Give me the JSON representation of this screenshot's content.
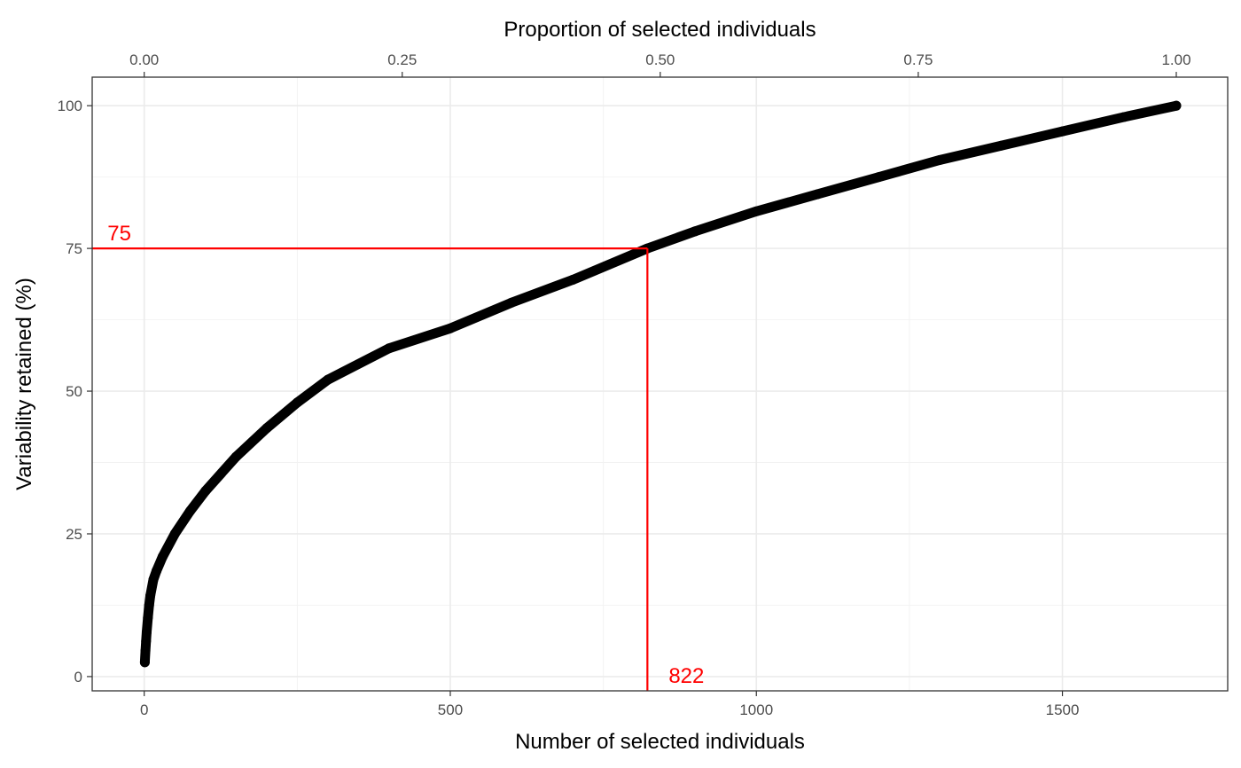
{
  "chart_data": {
    "type": "line",
    "xlabel": "Number of selected individuals",
    "ylabel": "Variability retained (%)",
    "secondary_xlabel": "Proportion of selected individuals",
    "xlim": [
      -85,
      1770
    ],
    "ylim": [
      -2.5,
      105
    ],
    "secondary_xlim": [
      0,
      1
    ],
    "secondary_x_max_individuals": 1686,
    "x_ticks": [
      0,
      500,
      1000,
      1500
    ],
    "x_tick_labels": [
      "0",
      "500",
      "1000",
      "1500"
    ],
    "y_ticks": [
      0,
      25,
      50,
      75,
      100
    ],
    "y_tick_labels": [
      "0",
      "25",
      "50",
      "75",
      "100"
    ],
    "secondary_x_ticks": [
      0,
      0.25,
      0.5,
      0.75,
      1
    ],
    "secondary_x_tick_labels": [
      "0.00",
      "0.25",
      "0.50",
      "0.75",
      "1.00"
    ],
    "grid": true,
    "series": [
      {
        "x": [
          1,
          2,
          3,
          4,
          6,
          8,
          10,
          15,
          20,
          30,
          50,
          75,
          100,
          150,
          200,
          250,
          300,
          400,
          500,
          600,
          700,
          822,
          900,
          1000,
          1100,
          1200,
          1300,
          1400,
          1500,
          1600,
          1686
        ],
        "y": [
          2.5,
          4.5,
          6.2,
          7.8,
          10.3,
          12.5,
          14.2,
          17.0,
          18.5,
          21.0,
          25.0,
          29.0,
          32.5,
          38.5,
          43.5,
          48.0,
          52.0,
          57.5,
          61.0,
          65.5,
          69.5,
          75.0,
          78.0,
          81.5,
          84.5,
          87.5,
          90.5,
          93.0,
          95.5,
          98.0,
          100.0
        ],
        "color": "#000000"
      }
    ],
    "annotations": [
      {
        "text": "75",
        "value": 75,
        "orientation": "horizontal",
        "color": "#ff0000"
      },
      {
        "text": "822",
        "value": 822,
        "orientation": "vertical",
        "color": "#ff0000"
      }
    ]
  }
}
